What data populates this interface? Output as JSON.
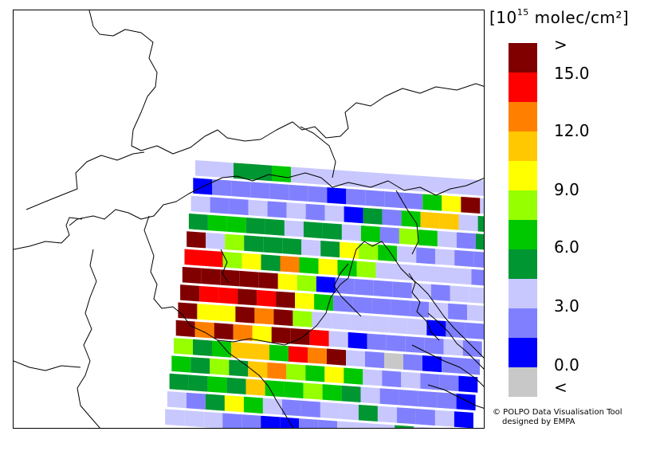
{
  "units": {
    "prefix": "[10",
    "exp": "15",
    "suffix": " molec/cm²]"
  },
  "legend": {
    "colors": [
      "#800000",
      "#ff0000",
      "#ff8000",
      "#ffc800",
      "#ffff00",
      "#96ff00",
      "#00c800",
      "#009632",
      "#c8c8ff",
      "#8080ff",
      "#0000ff",
      "#c8c8c8"
    ],
    "tick_labels": [
      ">",
      "15.0",
      "12.0",
      "9.0",
      "6.0",
      "3.0",
      "0.0",
      "<"
    ]
  },
  "credit": {
    "line1": "© POLPO Data Visualisation Tool",
    "line2": "designed by EMPA"
  },
  "map": {
    "region": "Northern Italy, Alps and northern Adriatic",
    "grid_rows": [
      [
        "#c8c8ff",
        "#c8c8ff",
        "#009632",
        "#009632",
        "#00c800",
        "#c8c8ff",
        "#c8c8ff",
        "#c8c8ff",
        "#c8c8ff",
        "#c8c8ff",
        "#c8c8ff",
        "#c8c8ff",
        "#c8c8ff",
        "#c8c8ff",
        "#c8c8ff",
        "#c8c8ff"
      ],
      [
        "#0000ff",
        "#8080ff",
        "#8080ff",
        "#8080ff",
        "#8080ff",
        "#8080ff",
        "#8080ff",
        "#0000ff",
        "#8080ff",
        "#8080ff",
        "#8080ff",
        "#8080ff",
        "#00c800",
        "#ffff00",
        "#800000",
        "#c8c8ff"
      ],
      [
        "#c8c8ff",
        "#8080ff",
        "#8080ff",
        "#c8c8ff",
        "#8080ff",
        "#c8c8ff",
        "#8080ff",
        "#c8c8ff",
        "#0000ff",
        "#009632",
        "#8080ff",
        "#00c800",
        "#ffc800",
        "#ffc800",
        "#c8c8ff",
        "#009632"
      ],
      [
        "#009632",
        "#00c800",
        "#00c800",
        "#009632",
        "#009632",
        "#c8c8ff",
        "#009632",
        "#009632",
        "#c8c8ff",
        "#00c800",
        "#8080ff",
        "#96ff00",
        "#00c800",
        "#c8c8ff",
        "#8080ff",
        "#009632"
      ],
      [
        "#800000",
        "#c8c8ff",
        "#96ff00",
        "#009632",
        "#009632",
        "#009632",
        "#c8c8ff",
        "#009632",
        "#ffff00",
        "#96ff00",
        "#00c800",
        "#c8c8ff",
        "#8080ff",
        "#c8c8ff",
        "#8080ff",
        "#8080ff"
      ],
      [
        "#ff0000",
        "#ff0000",
        "#96ff00",
        "#ffff00",
        "#009632",
        "#ff8000",
        "#00c800",
        "#ffff00",
        "#00c800",
        "#96ff00",
        "#c8c8ff",
        "#c8c8ff",
        "#c8c8ff",
        "#c8c8ff",
        "#c8c8ff",
        "#8080ff"
      ],
      [
        "#800000",
        "#800000",
        "#800000",
        "#800000",
        "#800000",
        "#ffff00",
        "#96ff00",
        "#0000ff",
        "#8080ff",
        "#8080ff",
        "#8080ff",
        "#8080ff",
        "#c8c8ff",
        "#8080ff",
        "#c8c8ff",
        "#c8c8ff"
      ],
      [
        "#800000",
        "#ff0000",
        "#ff0000",
        "#800000",
        "#ff0000",
        "#800000",
        "#ffff00",
        "#00c800",
        "#8080ff",
        "#8080ff",
        "#8080ff",
        "#8080ff",
        "#8080ff",
        "#c8c8ff",
        "#8080ff",
        "#c8c8ff"
      ],
      [
        "#800000",
        "#ffff00",
        "#ffff00",
        "#800000",
        "#ff8000",
        "#800000",
        "#96ff00",
        "#c8c8ff",
        "#c8c8ff",
        "#c8c8ff",
        "#c8c8ff",
        "#c8c8ff",
        "#c8c8ff",
        "#0000ff",
        "#8080ff",
        "#8080ff"
      ],
      [
        "#800000",
        "#ff8000",
        "#800000",
        "#ff8000",
        "#ffff00",
        "#800000",
        "#800000",
        "#ff0000",
        "#c8c8ff",
        "#0000ff",
        "#8080ff",
        "#8080ff",
        "#8080ff",
        "#8080ff",
        "#c8c8ff",
        "#8080ff"
      ],
      [
        "#96ff00",
        "#009632",
        "#00c800",
        "#ffc800",
        "#ffc800",
        "#00c800",
        "#ff0000",
        "#ff8000",
        "#800000",
        "#c8c8ff",
        "#8080ff",
        "#c8c8c8",
        "#8080ff",
        "#0000ff",
        "#8080ff",
        "#8080ff"
      ],
      [
        "#00c800",
        "#009632",
        "#96ff00",
        "#009632",
        "#ffc800",
        "#ff8000",
        "#96ff00",
        "#00c800",
        "#ffff00",
        "#00c800",
        "#c8c8ff",
        "#8080ff",
        "#c8c8ff",
        "#8080ff",
        "#8080ff",
        "#0000ff"
      ],
      [
        "#009632",
        "#009632",
        "#00c800",
        "#009632",
        "#ffc800",
        "#00c800",
        "#00c800",
        "#96ff00",
        "#00c800",
        "#009632",
        "#c8c8ff",
        "#8080ff",
        "#8080ff",
        "#8080ff",
        "#8080ff",
        "#0000ff"
      ],
      [
        "#c8c8ff",
        "#8080ff",
        "#009632",
        "#ffff00",
        "#00c800",
        "#c8c8ff",
        "#8080ff",
        "#8080ff",
        "#c8c8ff",
        "#c8c8ff",
        "#009632",
        "#c8c8ff",
        "#8080ff",
        "#8080ff",
        "#c8c8ff",
        "#0000ff"
      ],
      [
        "#c8c8ff",
        "#c8c8ff",
        "#c8c8ff",
        "#8080ff",
        "#8080ff",
        "#0000ff",
        "#0000ff",
        "#8080ff",
        "#8080ff",
        "#c8c8ff",
        "#c8c8ff",
        "#c8c8ff",
        "#009632",
        "#c8c8ff",
        "#8080ff",
        "#c8c8c8"
      ]
    ]
  }
}
